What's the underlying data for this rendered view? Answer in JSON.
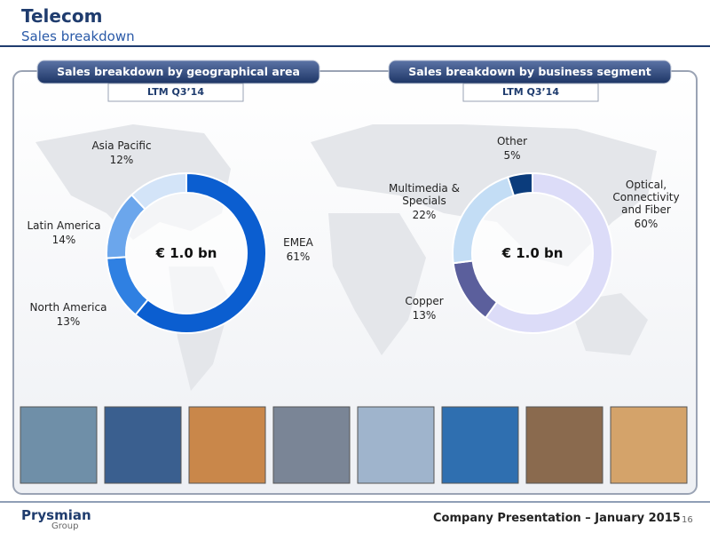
{
  "header": {
    "title": "Telecom",
    "subtitle": "Sales breakdown"
  },
  "chart_data": [
    {
      "type": "donut",
      "title": "Sales breakdown by geographical area",
      "subtitle": "LTM Q3’14",
      "center_label": "€ 1.0 bn",
      "categories": [
        "EMEA",
        "North America",
        "Latin America",
        "Asia Pacific"
      ],
      "values": [
        61,
        13,
        14,
        12
      ],
      "value_labels": [
        "61%",
        "13%",
        "14%",
        "12%"
      ],
      "colors": [
        "#0b5ed0",
        "#2f80e2",
        "#6ba6ec",
        "#d3e4f8"
      ]
    },
    {
      "type": "donut",
      "title": "Sales breakdown by business segment",
      "subtitle": "LTM Q3’14",
      "center_label": "€ 1.0 bn",
      "categories": [
        "Optical, Connectivity and Fiber",
        "Copper",
        "Multimedia & Specials",
        "Other"
      ],
      "values": [
        60,
        13,
        22,
        5
      ],
      "value_labels": [
        "60%",
        "13%",
        "22%",
        "5%"
      ],
      "colors": [
        "#dcdcf8",
        "#5b5f9c",
        "#c3ddf5",
        "#0b3c7c"
      ]
    }
  ],
  "footer": {
    "logo": "Prysmian",
    "logo_sub": "Group",
    "text": "Company Presentation – January 2015",
    "page": "16"
  }
}
